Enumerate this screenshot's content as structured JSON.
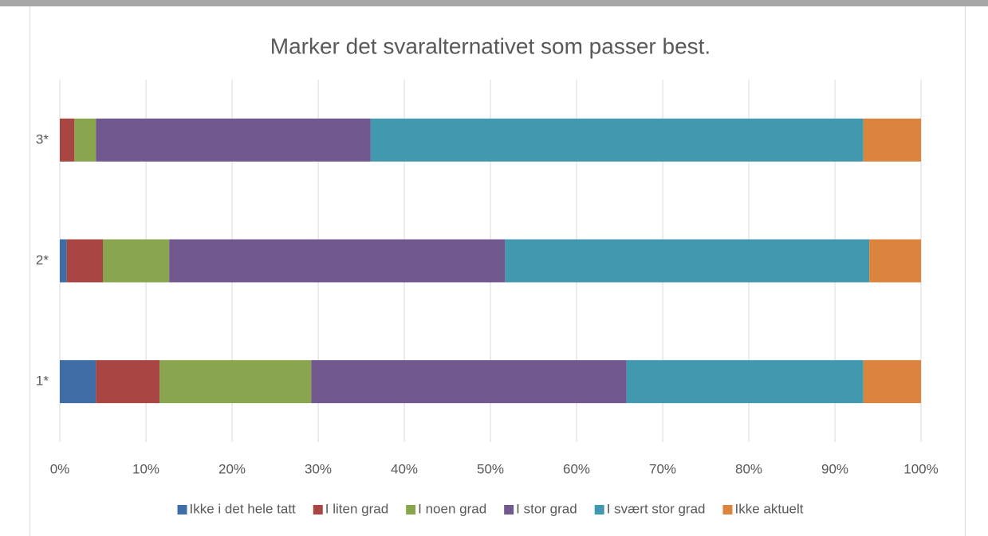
{
  "chart_data": {
    "type": "stacked_bar_horizontal",
    "title": "Marker det svaralternativet som passer best.",
    "categories": [
      "1*",
      "2*",
      "3*"
    ],
    "series": [
      {
        "name": "Ikke i det hele tatt",
        "color": "#3f6ea6",
        "values": [
          4.2,
          0.8,
          0
        ]
      },
      {
        "name": "I liten grad",
        "color": "#a94643",
        "values": [
          7.4,
          4.2,
          1.7
        ]
      },
      {
        "name": "I noen grad",
        "color": "#89a54e",
        "values": [
          17.6,
          7.7,
          2.5
        ]
      },
      {
        "name": "I stor grad",
        "color": "#71588f",
        "values": [
          36.6,
          39.0,
          31.9
        ]
      },
      {
        "name": "I svært stor grad",
        "color": "#4198af",
        "values": [
          27.5,
          42.3,
          57.2
        ]
      },
      {
        "name": "Ikke aktuelt",
        "color": "#db843d",
        "values": [
          6.7,
          6.0,
          6.7
        ]
      }
    ],
    "xlim": [
      0,
      100
    ],
    "xticks": [
      {
        "value": 0,
        "label": "0%"
      },
      {
        "value": 10,
        "label": "10%"
      },
      {
        "value": 20,
        "label": "20%"
      },
      {
        "value": 30,
        "label": "30%"
      },
      {
        "value": 40,
        "label": "40%"
      },
      {
        "value": 50,
        "label": "50%"
      },
      {
        "value": 60,
        "label": "60%"
      },
      {
        "value": 70,
        "label": "70%"
      },
      {
        "value": 80,
        "label": "80%"
      },
      {
        "value": 90,
        "label": "90%"
      },
      {
        "value": 100,
        "label": "100%"
      }
    ],
    "grid": true,
    "legend": "bottom"
  }
}
